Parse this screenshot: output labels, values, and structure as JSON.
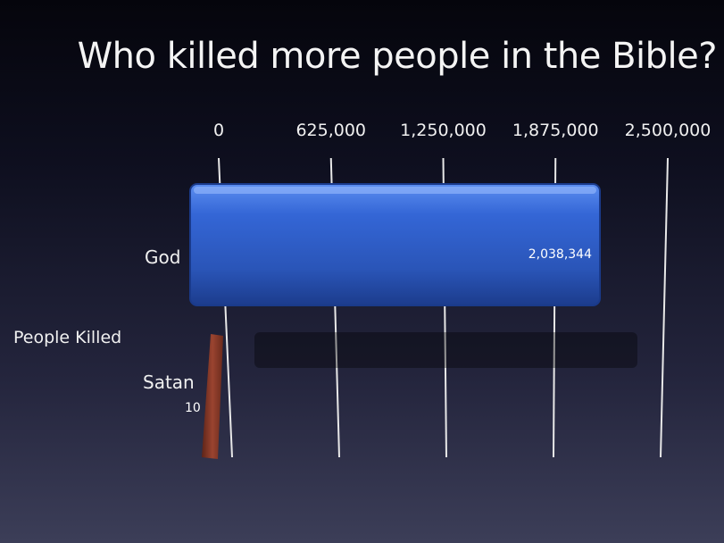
{
  "chart_data": {
    "type": "bar",
    "title": "Who killed more people in the Bible?",
    "series_label": "People Killed",
    "categories": [
      "God",
      "Satan"
    ],
    "values": [
      2038344,
      10
    ],
    "value_labels": [
      "2,038,344",
      "10"
    ],
    "xlim": [
      0,
      2500000
    ],
    "ticks": [
      0,
      625000,
      1250000,
      1875000,
      2500000
    ],
    "tick_labels": [
      "0",
      "625,000",
      "1,250,000",
      "1,875,000",
      "2,500,000"
    ],
    "grid": true,
    "colors": {
      "God": "#2f5fc8",
      "Satan": "#8a3a26"
    }
  }
}
